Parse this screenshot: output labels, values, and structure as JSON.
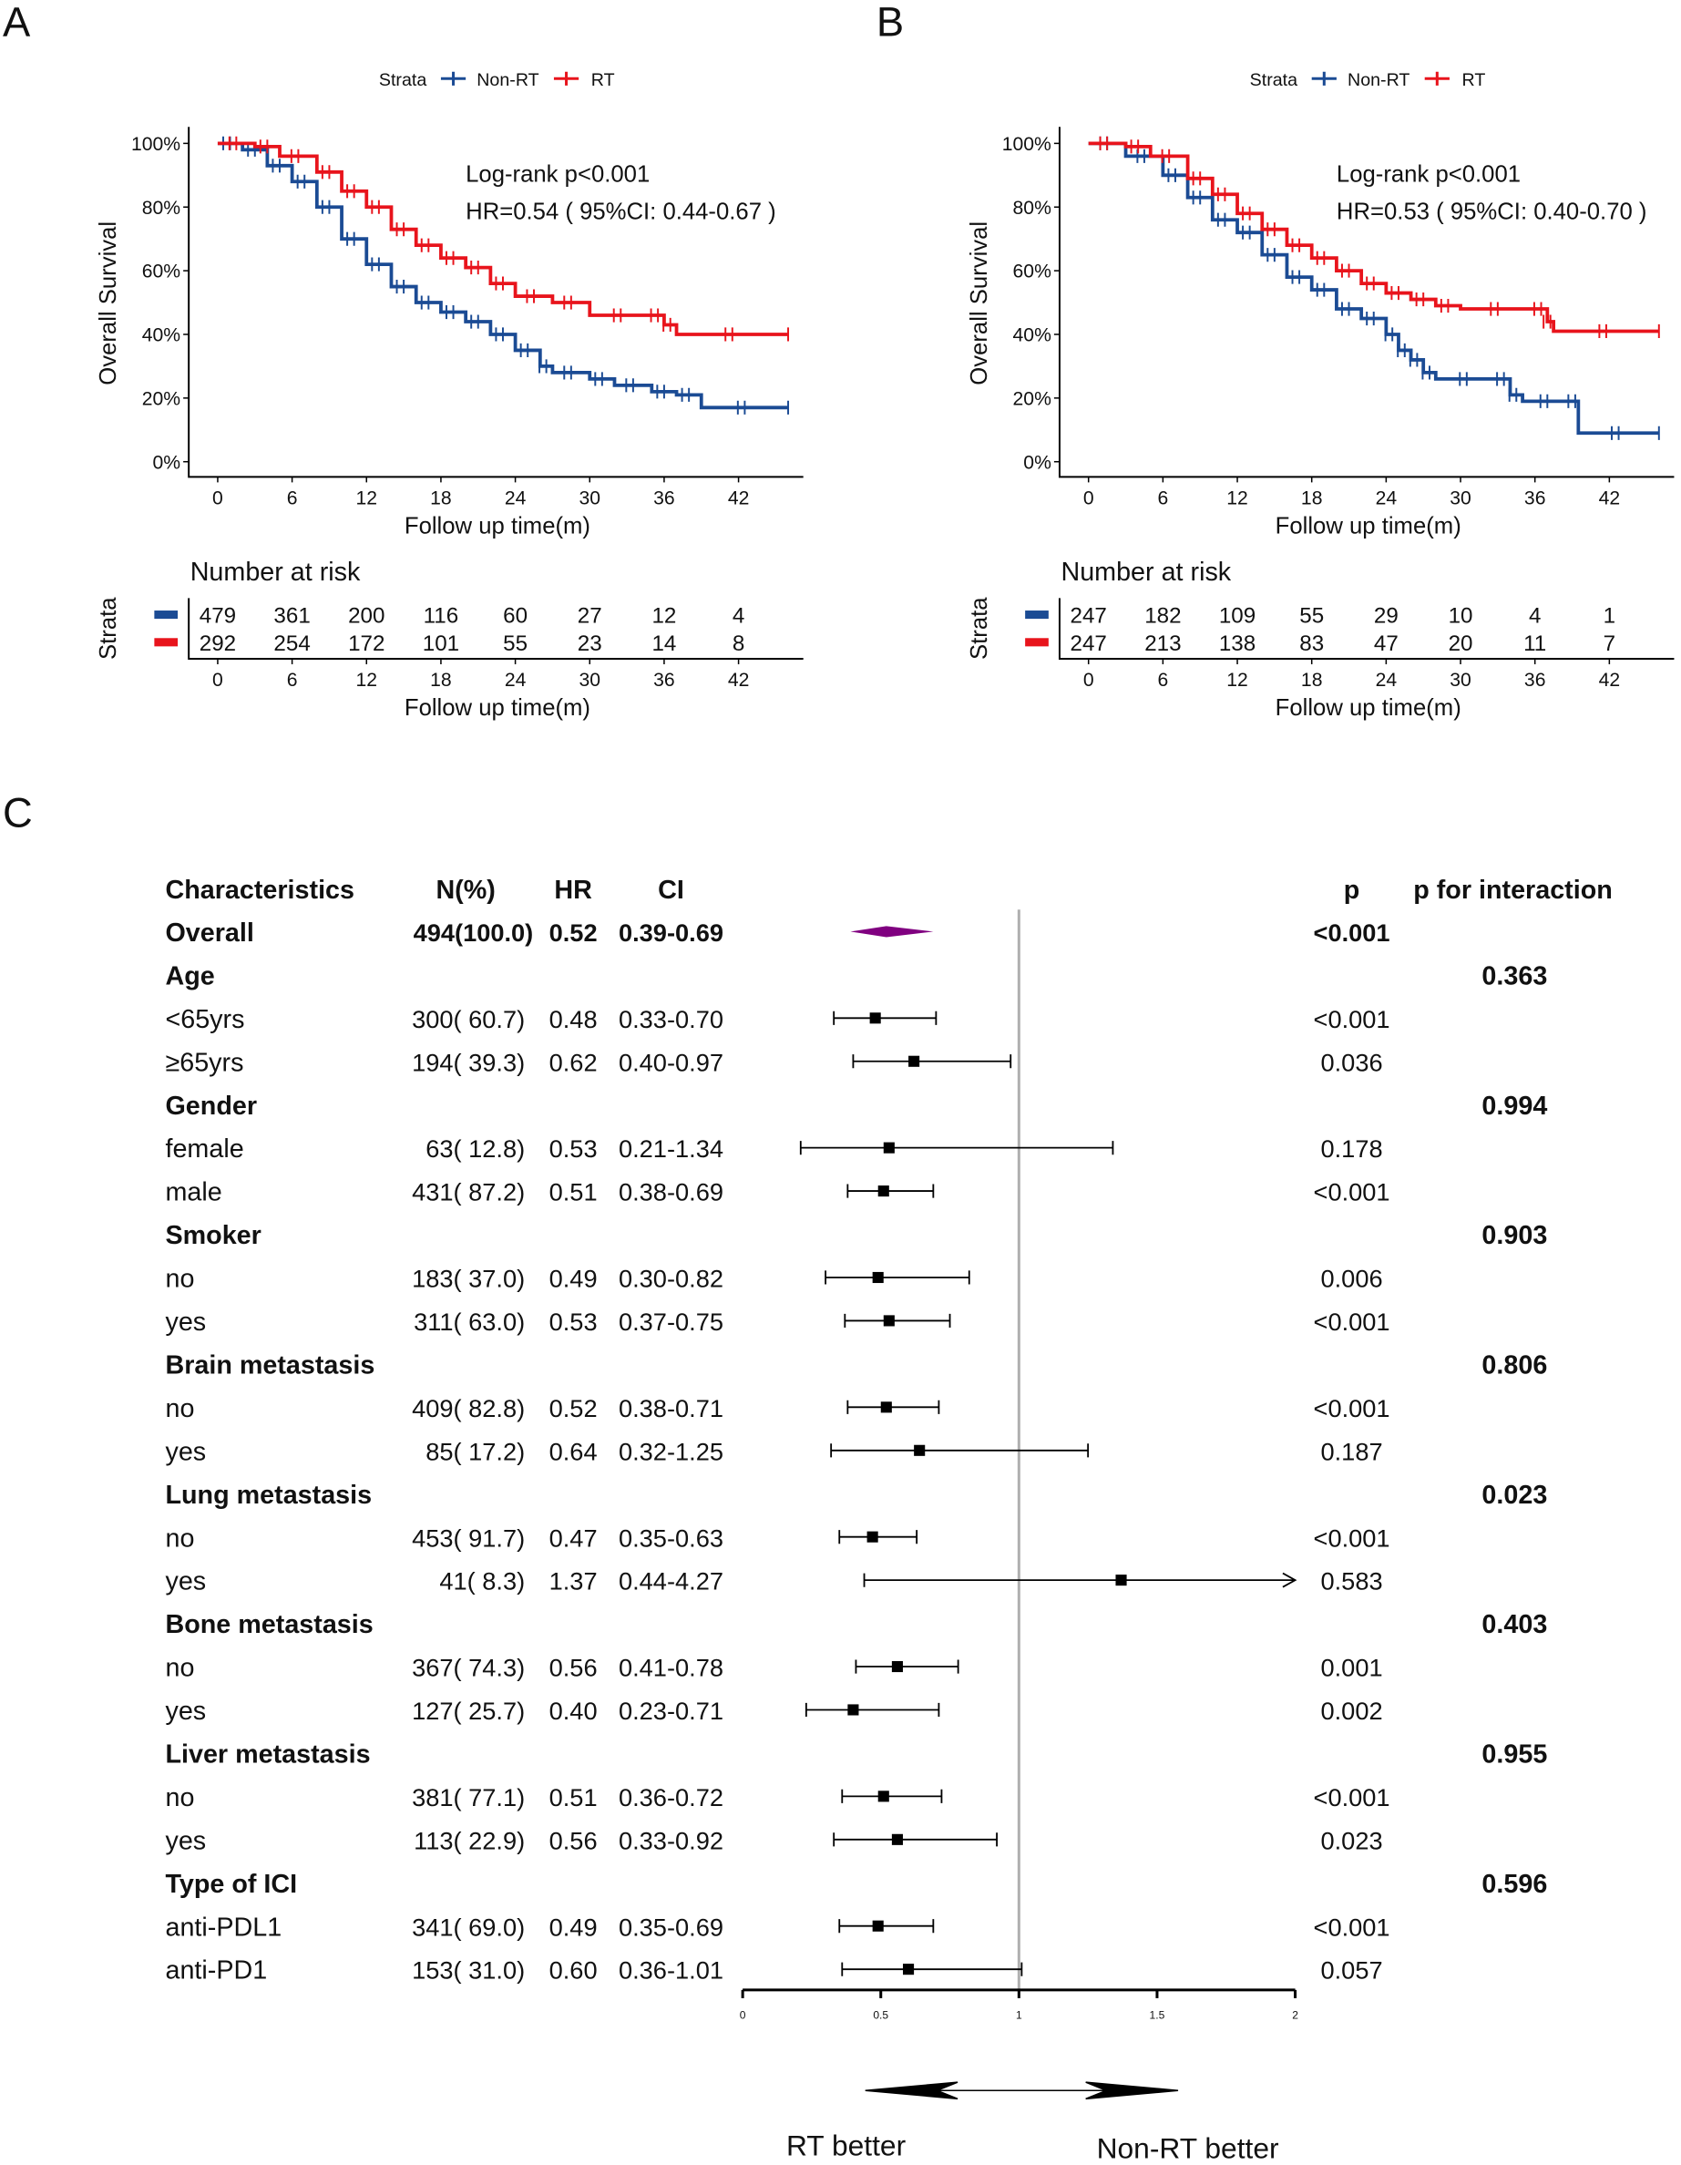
{
  "panels": {
    "a": "A",
    "b": "B",
    "c": "C"
  },
  "colors": {
    "non_rt": "#1b4b94",
    "rt": "#e8141c",
    "diamond": "#800080",
    "ref_line": "#b0b0b0"
  },
  "chart_data": [
    {
      "type": "line",
      "panel": "A",
      "legend_title": "Strata",
      "legend": [
        "Non-RT",
        "RT"
      ],
      "legend_placement": "top",
      "ylabel": "Overall Survival",
      "xlabel": "Follow up time(m)",
      "yticks": [
        "0%",
        "20%",
        "40%",
        "60%",
        "80%",
        "100%"
      ],
      "xticks": [
        0,
        6,
        12,
        18,
        24,
        30,
        36,
        42
      ],
      "xlim": [
        0,
        46
      ],
      "ylim": [
        0,
        100
      ],
      "annotation": [
        "Log-rank p<0.001",
        "HR=0.54 ( 95%CI: 0.44-0.67 )"
      ],
      "series": [
        {
          "name": "Non-RT",
          "x": [
            0,
            2,
            4,
            6,
            8,
            10,
            12,
            14,
            16,
            18,
            20,
            22,
            24,
            26,
            27,
            30,
            32,
            35,
            37,
            39,
            46
          ],
          "y": [
            100,
            98,
            93,
            88,
            80,
            70,
            62,
            55,
            50,
            47,
            44,
            40,
            35,
            30,
            28,
            26,
            24,
            22,
            21,
            17,
            17
          ]
        },
        {
          "name": "RT",
          "x": [
            0,
            3,
            5,
            8,
            10,
            12,
            14,
            16,
            18,
            20,
            22,
            24,
            27,
            30,
            35,
            36,
            37,
            46
          ],
          "y": [
            100,
            99,
            96,
            91,
            85,
            80,
            73,
            68,
            64,
            61,
            56,
            52,
            50,
            46,
            46,
            43,
            40,
            40
          ]
        }
      ],
      "risk_table": {
        "title": "Number at risk",
        "ylabel": "Strata",
        "xlabel": "Follow up time(m)",
        "rows": [
          {
            "name": "Non-RT",
            "values": [
              "479",
              "361",
              "200",
              "116",
              "60",
              "27",
              "12",
              "4"
            ]
          },
          {
            "name": "RT",
            "values": [
              "292",
              "254",
              "172",
              "101",
              "55",
              "23",
              "14",
              "8"
            ]
          }
        ]
      }
    },
    {
      "type": "line",
      "panel": "B",
      "legend_title": "Strata",
      "legend": [
        "Non-RT",
        "RT"
      ],
      "legend_placement": "top",
      "ylabel": "Overall Survival",
      "xlabel": "Follow up time(m)",
      "yticks": [
        "0%",
        "20%",
        "40%",
        "60%",
        "80%",
        "100%"
      ],
      "xticks": [
        0,
        6,
        12,
        18,
        24,
        30,
        36,
        42
      ],
      "xlim": [
        0,
        46
      ],
      "ylim": [
        0,
        100
      ],
      "annotation": [
        "Log-rank p<0.001",
        "HR=0.53 ( 95%CI: 0.40-0.70 )"
      ],
      "series": [
        {
          "name": "Non-RT",
          "x": [
            0,
            3,
            6,
            8,
            10,
            12,
            14,
            16,
            18,
            20,
            22,
            24,
            25,
            26,
            27,
            28,
            33,
            34,
            35,
            39,
            39.5,
            46
          ],
          "y": [
            100,
            96,
            90,
            83,
            76,
            72,
            65,
            58,
            54,
            48,
            45,
            40,
            35,
            32,
            28,
            26,
            26,
            21,
            19,
            19,
            9,
            9
          ]
        },
        {
          "name": "RT",
          "x": [
            0,
            3,
            5,
            8,
            10,
            12,
            14,
            16,
            18,
            20,
            22,
            24,
            26,
            28,
            30,
            36,
            37,
            37.5,
            46
          ],
          "y": [
            100,
            99,
            96,
            89,
            84,
            78,
            73,
            68,
            64,
            60,
            56,
            53,
            51,
            49,
            48,
            48,
            44,
            41,
            41
          ]
        }
      ],
      "risk_table": {
        "title": "Number at risk",
        "ylabel": "Strata",
        "xlabel": "Follow up time(m)",
        "rows": [
          {
            "name": "Non-RT",
            "values": [
              "247",
              "182",
              "109",
              "55",
              "29",
              "10",
              "4",
              "1"
            ]
          },
          {
            "name": "RT",
            "values": [
              "247",
              "213",
              "138",
              "83",
              "47",
              "20",
              "11",
              "7"
            ]
          }
        ]
      }
    },
    {
      "type": "forest",
      "panel": "C",
      "headers": {
        "char": "Characteristics",
        "n": "N(%)",
        "hr": "HR",
        "ci": "CI",
        "p": "p",
        "pint": "p for interaction"
      },
      "xticks": [
        "0",
        "0.5",
        "1",
        "1.5",
        "2"
      ],
      "xlim": [
        0,
        2
      ],
      "ref": 1,
      "left_label": "RT better",
      "right_label": "Non-RT better",
      "rows": [
        {
          "label": "Overall",
          "bold": true,
          "n": "494(100.0)",
          "hr": "0.52",
          "ci": "0.39-0.69",
          "p": "<0.001",
          "pint": "",
          "est": 0.52,
          "lo": 0.39,
          "hi": 0.69,
          "diamond": true
        },
        {
          "label": "Age",
          "bold": true,
          "n": "",
          "hr": "",
          "ci": "",
          "p": "",
          "pint": "0.363"
        },
        {
          "label": "<65yrs",
          "n": "300( 60.7)",
          "hr": "0.48",
          "ci": "0.33-0.70",
          "p": "<0.001",
          "pint": "",
          "est": 0.48,
          "lo": 0.33,
          "hi": 0.7
        },
        {
          "label": "≥65yrs",
          "n": "194( 39.3)",
          "hr": "0.62",
          "ci": "0.40-0.97",
          "p": "0.036",
          "pint": "",
          "est": 0.62,
          "lo": 0.4,
          "hi": 0.97
        },
        {
          "label": "Gender",
          "bold": true,
          "n": "",
          "hr": "",
          "ci": "",
          "p": "",
          "pint": "0.994"
        },
        {
          "label": "female",
          "n": "63( 12.8)",
          "hr": "0.53",
          "ci": "0.21-1.34",
          "p": "0.178",
          "pint": "",
          "est": 0.53,
          "lo": 0.21,
          "hi": 1.34
        },
        {
          "label": "male",
          "n": "431( 87.2)",
          "hr": "0.51",
          "ci": "0.38-0.69",
          "p": "<0.001",
          "pint": "",
          "est": 0.51,
          "lo": 0.38,
          "hi": 0.69
        },
        {
          "label": "Smoker",
          "bold": true,
          "n": "",
          "hr": "",
          "ci": "",
          "p": "",
          "pint": "0.903"
        },
        {
          "label": "no",
          "n": "183( 37.0)",
          "hr": "0.49",
          "ci": "0.30-0.82",
          "p": "0.006",
          "pint": "",
          "est": 0.49,
          "lo": 0.3,
          "hi": 0.82
        },
        {
          "label": "yes",
          "n": "311( 63.0)",
          "hr": "0.53",
          "ci": "0.37-0.75",
          "p": "<0.001",
          "pint": "",
          "est": 0.53,
          "lo": 0.37,
          "hi": 0.75
        },
        {
          "label": "Brain metastasis",
          "bold": true,
          "n": "",
          "hr": "",
          "ci": "",
          "p": "",
          "pint": "0.806"
        },
        {
          "label": "no",
          "n": "409( 82.8)",
          "hr": "0.52",
          "ci": "0.38-0.71",
          "p": "<0.001",
          "pint": "",
          "est": 0.52,
          "lo": 0.38,
          "hi": 0.71
        },
        {
          "label": "yes",
          "n": "85( 17.2)",
          "hr": "0.64",
          "ci": "0.32-1.25",
          "p": "0.187",
          "pint": "",
          "est": 0.64,
          "lo": 0.32,
          "hi": 1.25
        },
        {
          "label": "Lung metastasis",
          "bold": true,
          "n": "",
          "hr": "",
          "ci": "",
          "p": "",
          "pint": "0.023"
        },
        {
          "label": "no",
          "n": "453( 91.7)",
          "hr": "0.47",
          "ci": "0.35-0.63",
          "p": "<0.001",
          "pint": "",
          "est": 0.47,
          "lo": 0.35,
          "hi": 0.63
        },
        {
          "label": "yes",
          "n": "41( 8.3)",
          "hr": "1.37",
          "ci": "0.44-4.27",
          "p": "0.583",
          "pint": "",
          "est": 1.37,
          "lo": 0.44,
          "hi": 4.27
        },
        {
          "label": "Bone metastasis",
          "bold": true,
          "n": "",
          "hr": "",
          "ci": "",
          "p": "",
          "pint": "0.403"
        },
        {
          "label": "no",
          "n": "367( 74.3)",
          "hr": "0.56",
          "ci": "0.41-0.78",
          "p": "0.001",
          "pint": "",
          "est": 0.56,
          "lo": 0.41,
          "hi": 0.78
        },
        {
          "label": "yes",
          "n": "127( 25.7)",
          "hr": "0.40",
          "ci": "0.23-0.71",
          "p": "0.002",
          "pint": "",
          "est": 0.4,
          "lo": 0.23,
          "hi": 0.71
        },
        {
          "label": "Liver metastasis",
          "bold": true,
          "n": "",
          "hr": "",
          "ci": "",
          "p": "",
          "pint": "0.955"
        },
        {
          "label": "no",
          "n": "381( 77.1)",
          "hr": "0.51",
          "ci": "0.36-0.72",
          "p": "<0.001",
          "pint": "",
          "est": 0.51,
          "lo": 0.36,
          "hi": 0.72
        },
        {
          "label": "yes",
          "n": "113( 22.9)",
          "hr": "0.56",
          "ci": "0.33-0.92",
          "p": "0.023",
          "pint": "",
          "est": 0.56,
          "lo": 0.33,
          "hi": 0.92
        },
        {
          "label": "Type of ICI",
          "bold": true,
          "n": "",
          "hr": "",
          "ci": "",
          "p": "",
          "pint": "0.596"
        },
        {
          "label": "anti-PDL1",
          "n": "341( 69.0)",
          "hr": "0.49",
          "ci": "0.35-0.69",
          "p": "<0.001",
          "pint": "",
          "est": 0.49,
          "lo": 0.35,
          "hi": 0.69
        },
        {
          "label": "anti-PD1",
          "n": "153( 31.0)",
          "hr": "0.60",
          "ci": "0.36-1.01",
          "p": "0.057",
          "pint": "",
          "est": 0.6,
          "lo": 0.36,
          "hi": 1.01
        }
      ]
    }
  ]
}
